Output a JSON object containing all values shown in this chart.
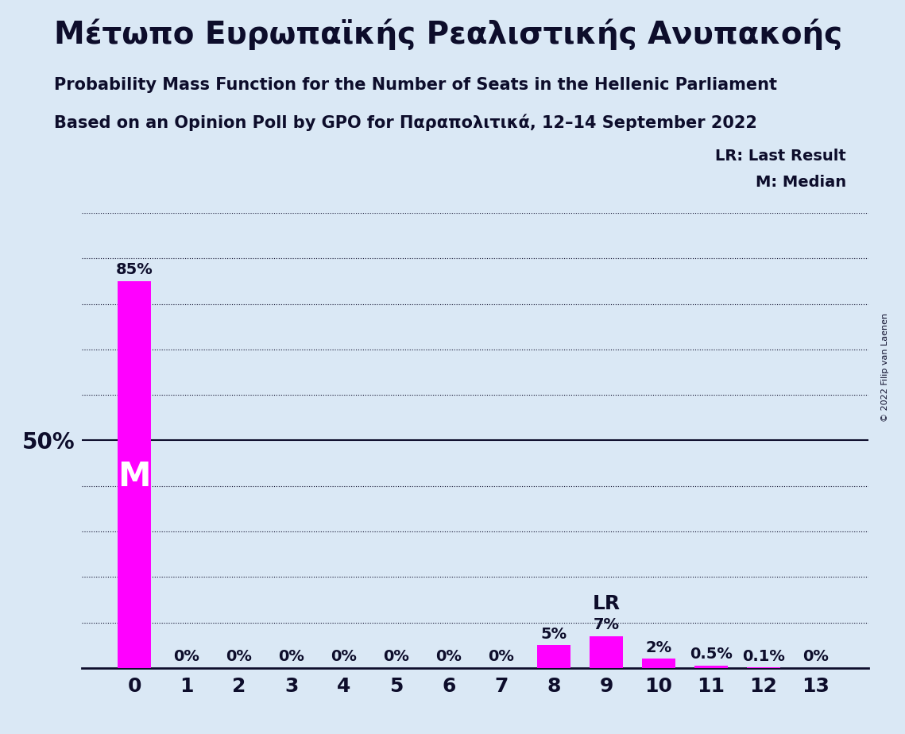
{
  "title_greek": "Μέτωπο Ευρωπαϊκής Ρεαλιστικής Ανυπακοής",
  "subtitle1": "Probability Mass Function for the Number of Seats in the Hellenic Parliament",
  "subtitle2": "Based on an Opinion Poll by GPO for Παραπολιτικά, 12–14 September 2022",
  "copyright": "© 2022 Filip van Laenen",
  "seats": [
    0,
    1,
    2,
    3,
    4,
    5,
    6,
    7,
    8,
    9,
    10,
    11,
    12,
    13
  ],
  "probabilities": [
    85,
    0,
    0,
    0,
    0,
    0,
    0,
    0,
    5,
    7,
    2,
    0.5,
    0.1,
    0
  ],
  "bar_labels": [
    "85%",
    "0%",
    "0%",
    "0%",
    "0%",
    "0%",
    "0%",
    "0%",
    "5%",
    "7%",
    "2%",
    "0.5%",
    "0.1%",
    "0%"
  ],
  "bar_color": "#FF00FF",
  "background_color": "#DAE8F5",
  "text_color": "#0D0D2B",
  "median_seat": 0,
  "last_result_seat": 9,
  "ylim": [
    0,
    100
  ],
  "ytick_50_label": "50%",
  "legend_lr": "LR: Last Result",
  "legend_m": "M: Median",
  "median_label": "M",
  "lr_label": "LR",
  "title_fontsize": 28,
  "subtitle_fontsize": 15,
  "bar_label_fontsize": 14,
  "ytick_fontsize": 20,
  "xtick_fontsize": 18,
  "legend_fontsize": 14,
  "median_fontsize": 30,
  "lr_fontsize": 18
}
